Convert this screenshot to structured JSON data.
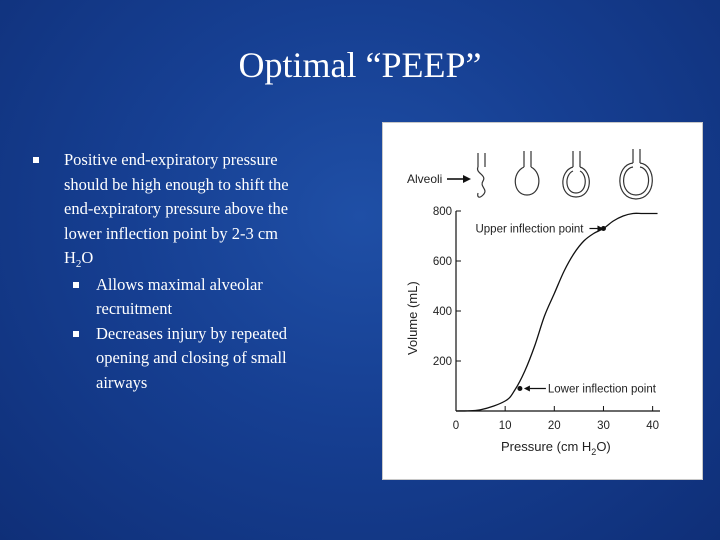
{
  "slide": {
    "title": "Optimal “PEEP”"
  },
  "bullets": {
    "main": {
      "line1": "Positive end-expiratory pressure",
      "line2": "should be high enough to shift the",
      "line3": "end-expiratory pressure above the",
      "line4": "lower inflection point  by 2-3 cm",
      "unit_h": "H",
      "unit_sub": "2",
      "unit_o": "O"
    },
    "sub1": {
      "line1": "Allows  maximal alveolar",
      "line2": "recruitment"
    },
    "sub2": {
      "line1": "Decreases injury by repeated",
      "line2": "opening and closing of small",
      "line3": "airways"
    }
  },
  "figure": {
    "alveoli_label": "Alveoli",
    "upper_label": "Upper inflection point",
    "lower_label": "Lower inflection point",
    "xlabel_main": "Pressure (cm H",
    "xlabel_sub": "2",
    "xlabel_end": "O)",
    "ylabel": "Volume (mL)"
  },
  "chart_data": {
    "type": "line",
    "xlabel": "Pressure (cm H2O)",
    "ylabel": "Volume (mL)",
    "xlim": [
      0,
      40
    ],
    "ylim": [
      0,
      800
    ],
    "x_ticks": [
      0,
      10,
      20,
      30,
      40
    ],
    "y_ticks": [
      200,
      400,
      600,
      800
    ],
    "grid": false,
    "series": [
      {
        "x": [
          0,
          5,
          10,
          12,
          14,
          16,
          18,
          20,
          22,
          24,
          26,
          28,
          30,
          32,
          34,
          36,
          38,
          41
        ],
        "values": [
          0,
          5,
          40,
          85,
          160,
          260,
          380,
          470,
          560,
          630,
          680,
          710,
          730,
          760,
          780,
          790,
          790,
          790
        ]
      }
    ],
    "annotations": [
      {
        "text": "Upper inflection point",
        "x": 30,
        "y": 730
      },
      {
        "text": "Lower inflection point",
        "x": 13,
        "y": 90
      }
    ]
  }
}
